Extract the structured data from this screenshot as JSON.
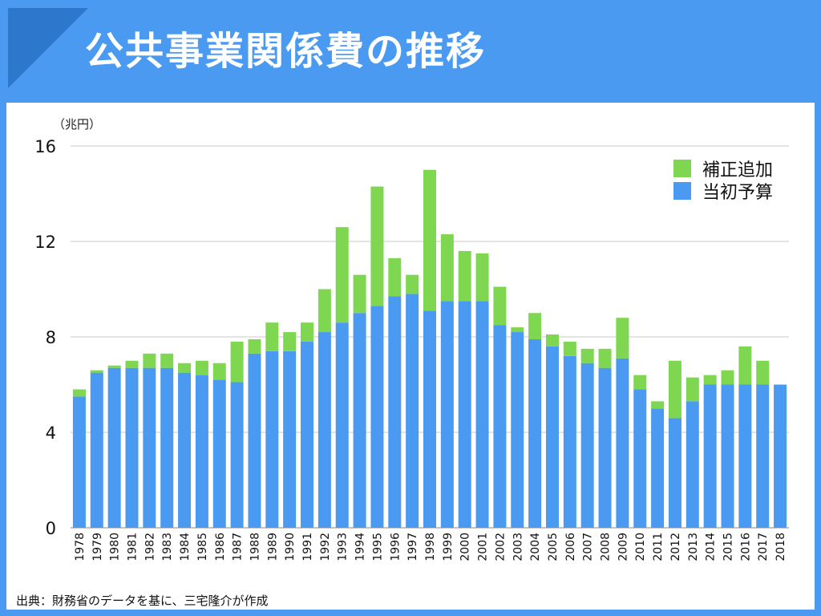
{
  "header": {
    "title": "公共事業関係費の推移",
    "background": "#4a9af2",
    "corner_color": "#2d78cc"
  },
  "chart_data": {
    "type": "bar",
    "stacked": true,
    "title": "公共事業関係費の推移",
    "unit_label": "（兆円）",
    "xlabel": "",
    "ylabel": "",
    "ylim": [
      0,
      16
    ],
    "yticks": [
      0,
      4,
      8,
      12,
      16
    ],
    "grid": true,
    "legend_position": "top-right",
    "categories": [
      "1978",
      "1979",
      "1980",
      "1981",
      "1982",
      "1983",
      "1984",
      "1985",
      "1986",
      "1987",
      "1988",
      "1989",
      "1990",
      "1991",
      "1992",
      "1993",
      "1994",
      "1995",
      "1996",
      "1997",
      "1998",
      "1999",
      "2000",
      "2001",
      "2002",
      "2003",
      "2004",
      "2005",
      "2006",
      "2007",
      "2008",
      "2009",
      "2010",
      "2011",
      "2012",
      "2013",
      "2014",
      "2015",
      "2016",
      "2017",
      "2018"
    ],
    "series": [
      {
        "name": "当初予算",
        "color": "#4a9af2",
        "values": [
          5.5,
          6.5,
          6.7,
          6.7,
          6.7,
          6.7,
          6.5,
          6.4,
          6.2,
          6.1,
          7.3,
          7.4,
          7.4,
          7.8,
          8.2,
          8.6,
          9.0,
          9.3,
          9.7,
          9.8,
          9.1,
          9.5,
          9.5,
          9.5,
          8.5,
          8.2,
          7.9,
          7.6,
          7.2,
          6.9,
          6.7,
          7.1,
          5.8,
          5.0,
          4.6,
          5.3,
          6.0,
          6.0,
          6.0,
          6.0,
          6.0
        ]
      },
      {
        "name": "補正追加",
        "color": "#7fd651",
        "values": [
          0.3,
          0.1,
          0.1,
          0.3,
          0.6,
          0.6,
          0.4,
          0.6,
          0.7,
          1.7,
          0.6,
          1.2,
          0.8,
          0.8,
          1.8,
          4.0,
          1.6,
          5.0,
          1.6,
          0.8,
          5.9,
          2.8,
          2.1,
          2.0,
          1.6,
          0.2,
          1.1,
          0.5,
          0.6,
          0.6,
          0.8,
          1.7,
          0.6,
          0.3,
          2.4,
          1.0,
          0.4,
          0.6,
          1.6,
          1.0,
          0.0
        ]
      }
    ]
  },
  "source_note": "出典：財務省のデータを基に、三宅隆介が作成"
}
